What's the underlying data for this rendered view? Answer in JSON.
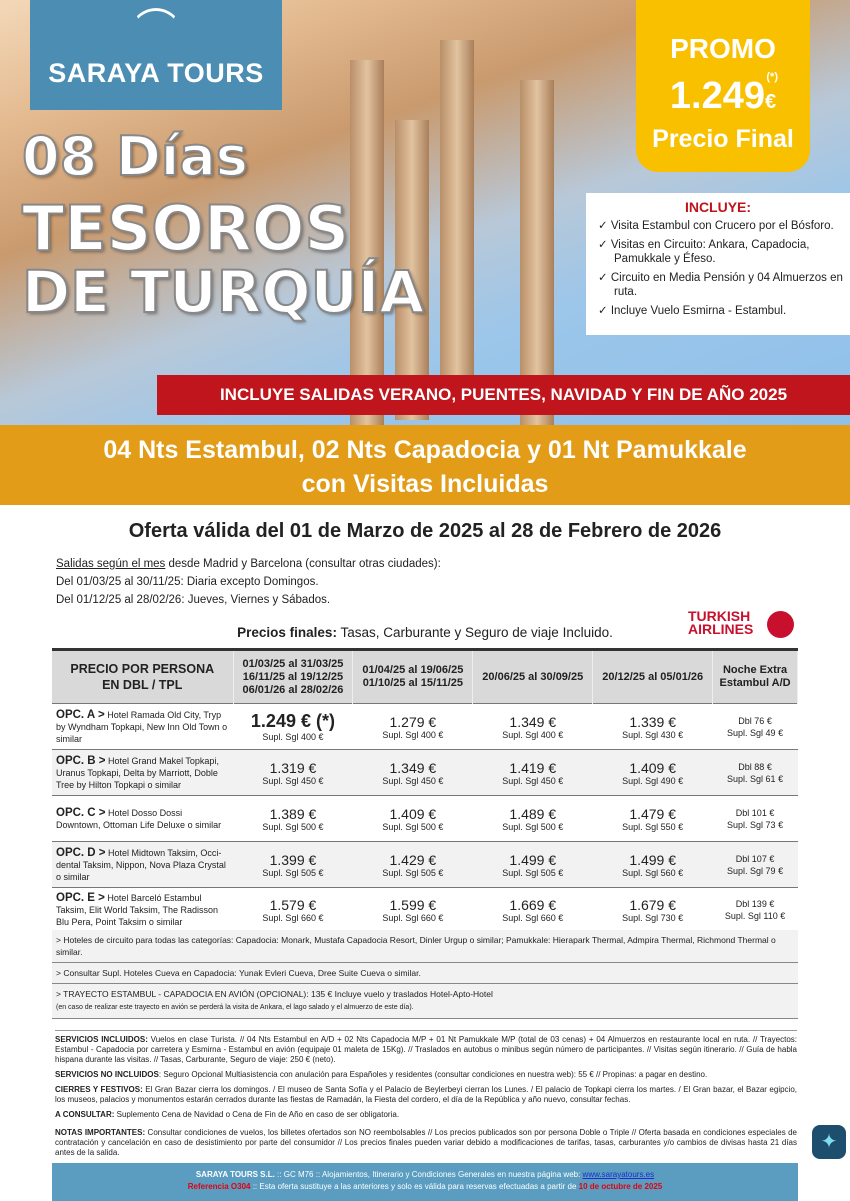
{
  "brand": {
    "name": "SARAYA TOURS"
  },
  "hero": {
    "line1": "08 Días",
    "line2": "TESOROS",
    "line3": "DE TURQUÍA"
  },
  "promo": {
    "label": "PROMO",
    "asterisk": "(*)",
    "price": "1.249",
    "currency": "€",
    "final": "Precio Final",
    "color": "#f9c000"
  },
  "includes": {
    "title": "INCLUYE:",
    "check": "✓",
    "items": [
      "Visita Estambul con Crucero por el Bósforo.",
      "Visitas en Circuito: Ankara, Capadocia, Pamukkale y Éfeso.",
      "Circuito en Media Pensión y 04 Almuerzos en ruta.",
      "Incluye Vuelo Esmirna - Estambul."
    ]
  },
  "banner": "INCLUYE SALIDAS VERANO, PUENTES, NAVIDAD Y FIN DE AÑO 2025",
  "subtitle": {
    "line1": "04 Nts Estambul, 02 Nts Capadocia y 01 Nt Pamukkale",
    "line2": "con Visitas Incluidas"
  },
  "validity": "Oferta válida del 01 de Marzo de 2025 al 28 de Febrero de 2026",
  "departures": {
    "link": "Salidas según el mes",
    "intro": " desde Madrid y Barcelona (consultar otras ciudades):",
    "lines": [
      "Del 01/03/25 al 30/11/25: Diaria excepto Domingos.",
      "Del 01/12/25 al 28/02/26: Jueves, Viernes y Sábados."
    ]
  },
  "airline": {
    "line1": "TURKISH",
    "line2": "AIRLINES"
  },
  "prices_note": {
    "bold": "Precios finales:",
    "text": " Tasas, Carburante y Seguro de viaje Incluido."
  },
  "table": {
    "headers": [
      "PRECIO POR PERSONA\nEN DBL / TPL",
      "01/03/25 al 31/03/25\n16/11/25 al 19/12/25\n06/01/26 al 28/02/26",
      "01/04/25 al 19/06/25\n01/10/25 al 15/11/25",
      "20/06/25 al 30/09/25",
      "20/12/25 al 05/01/26",
      "Noche Extra\nEstambul A/D"
    ],
    "rows": [
      {
        "opt": "OPC. A >",
        "hotels": "Hotel Ramada Old City, Tryp by Wyndham Topkapi, New Inn Old Town o similar",
        "prices": [
          [
            "1.249 € (*)",
            "Supl. Sgl 400 €"
          ],
          [
            "1.279 €",
            "Supl. Sgl 400 €"
          ],
          [
            "1.349 €",
            "Supl. Sgl 400 €"
          ],
          [
            "1.339 €",
            "Supl. Sgl 430 €"
          ]
        ],
        "extra": [
          "Dbl 76 €",
          "Supl. Sgl 49 €"
        ]
      },
      {
        "opt": "OPC. B >",
        "hotels": "Hotel Grand Makel Topkapi, Uranus Topkapi, Delta by Marriott, Doble Tree by Hilton Topkapi o similar",
        "prices": [
          [
            "1.319 €",
            "Supl. Sgl 450 €"
          ],
          [
            "1.349 €",
            "Supl. Sgl 450 €"
          ],
          [
            "1.419 €",
            "Supl. Sgl 450 €"
          ],
          [
            "1.409 €",
            "Supl. Sgl 490 €"
          ]
        ],
        "extra": [
          "Dbl 88 €",
          "Supl. Sgl 61 €"
        ]
      },
      {
        "opt": "OPC. C >",
        "hotels": "Hotel Dosso Dossi Downtown, Ottoman Life Deluxe o similar",
        "prices": [
          [
            "1.389 €",
            "Supl. Sgl 500 €"
          ],
          [
            "1.409 €",
            "Supl. Sgl 500 €"
          ],
          [
            "1.489 €",
            "Supl. Sgl 500 €"
          ],
          [
            "1.479 €",
            "Supl. Sgl 550 €"
          ]
        ],
        "extra": [
          "Dbl 101 €",
          "Supl. Sgl 73 €"
        ]
      },
      {
        "opt": "OPC. D >",
        "hotels": "Hotel Midtown Taksim, Occi-dental Taksim, Nippon, Nova Plaza Crystal o similar",
        "prices": [
          [
            "1.399 €",
            "Supl. Sgl 505 €"
          ],
          [
            "1.429 €",
            "Supl. Sgl 505 €"
          ],
          [
            "1.499 €",
            "Supl. Sgl 505 €"
          ],
          [
            "1.499 €",
            "Supl. Sgl 560 €"
          ]
        ],
        "extra": [
          "Dbl 107 €",
          "Supl. Sgl 79 €"
        ]
      },
      {
        "opt": "OPC. E >",
        "hotels": "Hotel Barceló Estambul Taksim, Elit World Taksim, The Radisson Blu Pera, Point Taksim o similar",
        "prices": [
          [
            "1.579 €",
            "Supl. Sgl 660 €"
          ],
          [
            "1.599 €",
            "Supl. Sgl 660 €"
          ],
          [
            "1.669 €",
            "Supl. Sgl 660 €"
          ],
          [
            "1.679 €",
            "Supl. Sgl 730 €"
          ]
        ],
        "extra": [
          "Dbl 139 €",
          "Supl. Sgl 110 €"
        ]
      }
    ]
  },
  "notes": [
    "> Hoteles de circuito para todas las categorías: Capadocia: Monark, Mustafa Capadocia Resort, Dinler Urgup o similar; Pamukkale: Hierapark Thermal, Admpira Thermal, Richmond Thermal o similar.",
    "> Consultar Supl. Hoteles Cueva en Capadocia: Yunak Evleri Cueva, Dree Suite Cueva o similar.",
    "> TRAYECTO ESTAMBUL - CAPADOCIA EN AVIÓN (OPCIONAL): 135 € Incluye vuelo y traslados Hotel-Apto-Hotel"
  ],
  "notes_small": "(en caso de realizar este trayecto en avión se perderá la visita de Ankara, el lago salado y el almuerzo de este día).",
  "services": [
    {
      "label": "SERVICIOS INCLUIDOS:",
      "text": " Vuelos en clase Turista. // 04 Nts Estambul en A/D + 02 Nts Capadocia M/P + 01 Nt Pamukkale M/P (total de 03 cenas) + 04 Almuerzos en restaurante local en ruta. // Trayectos: Estambul - Capadocia por carretera y Esmirna - Estambul en avión (equipaje 01 maleta de 15Kg). // Traslados en autobus o minibus según número de participantes. // Visitas según itinerario. // Guía de habla hispana durante las visitas. // Tasas, Carburante, Seguro de viaje: 250 € (neto)."
    },
    {
      "label": "SERVICIOS NO INCLUIDOS",
      "text": ": Seguro Opcional Multiasistencia con anulación para Españoles y residentes (consultar condiciones en nuestra web): 55 € // Propinas: a pagar en destino."
    },
    {
      "label": "CIERRES Y FESTIVOS:",
      "text": " El Gran Bazar cierra los domingos. / El museo de Santa Sofía y el Palacio de Beylerbeyi cierran los Lunes. / El palacio de Topkapi cierra los martes. / El Gran bazar, el Bazar egipcio, los museos, palacios y monumentos estarán cerrados durante las fiestas de Ramadán, la Fiesta del cordero, el día de la República y año nuevo, consultar fechas."
    },
    {
      "label": "A CONSULTAR:",
      "text": " Suplemento Cena de Navidad o Cena de Fin de Año en caso de ser obligatoria."
    },
    {
      "label": "NOTAS IMPORTANTES:",
      "text": " Consultar condiciones de vuelos, los billetes ofertados son NO reembolsables // Los precios publicados son por persona Doble o Triple // Oferta basada en condiciones especiales de contratación y cancelación en caso de desistimiento por parte del consumidor // Los precios finales pueden variar debido a modificaciones de tarifas, tasas, carburantes y/o cambios de divisas hasta 21 días antes de la salida."
    }
  ],
  "footer": {
    "company": "SARAYA TOURS S.L.",
    "gc": " :: GC M76 ::  Alojamientos, Itinerario y Condiciones Generales en nuestra página web:  ",
    "url": "www.sarayatours.es",
    "ref": "Referencia O304",
    "ref_text": " :: Esta oferta sustituye a las anteriores y solo es válida para reservas efectuadas a partir de ",
    "date": "10 de octubre de 2025"
  }
}
